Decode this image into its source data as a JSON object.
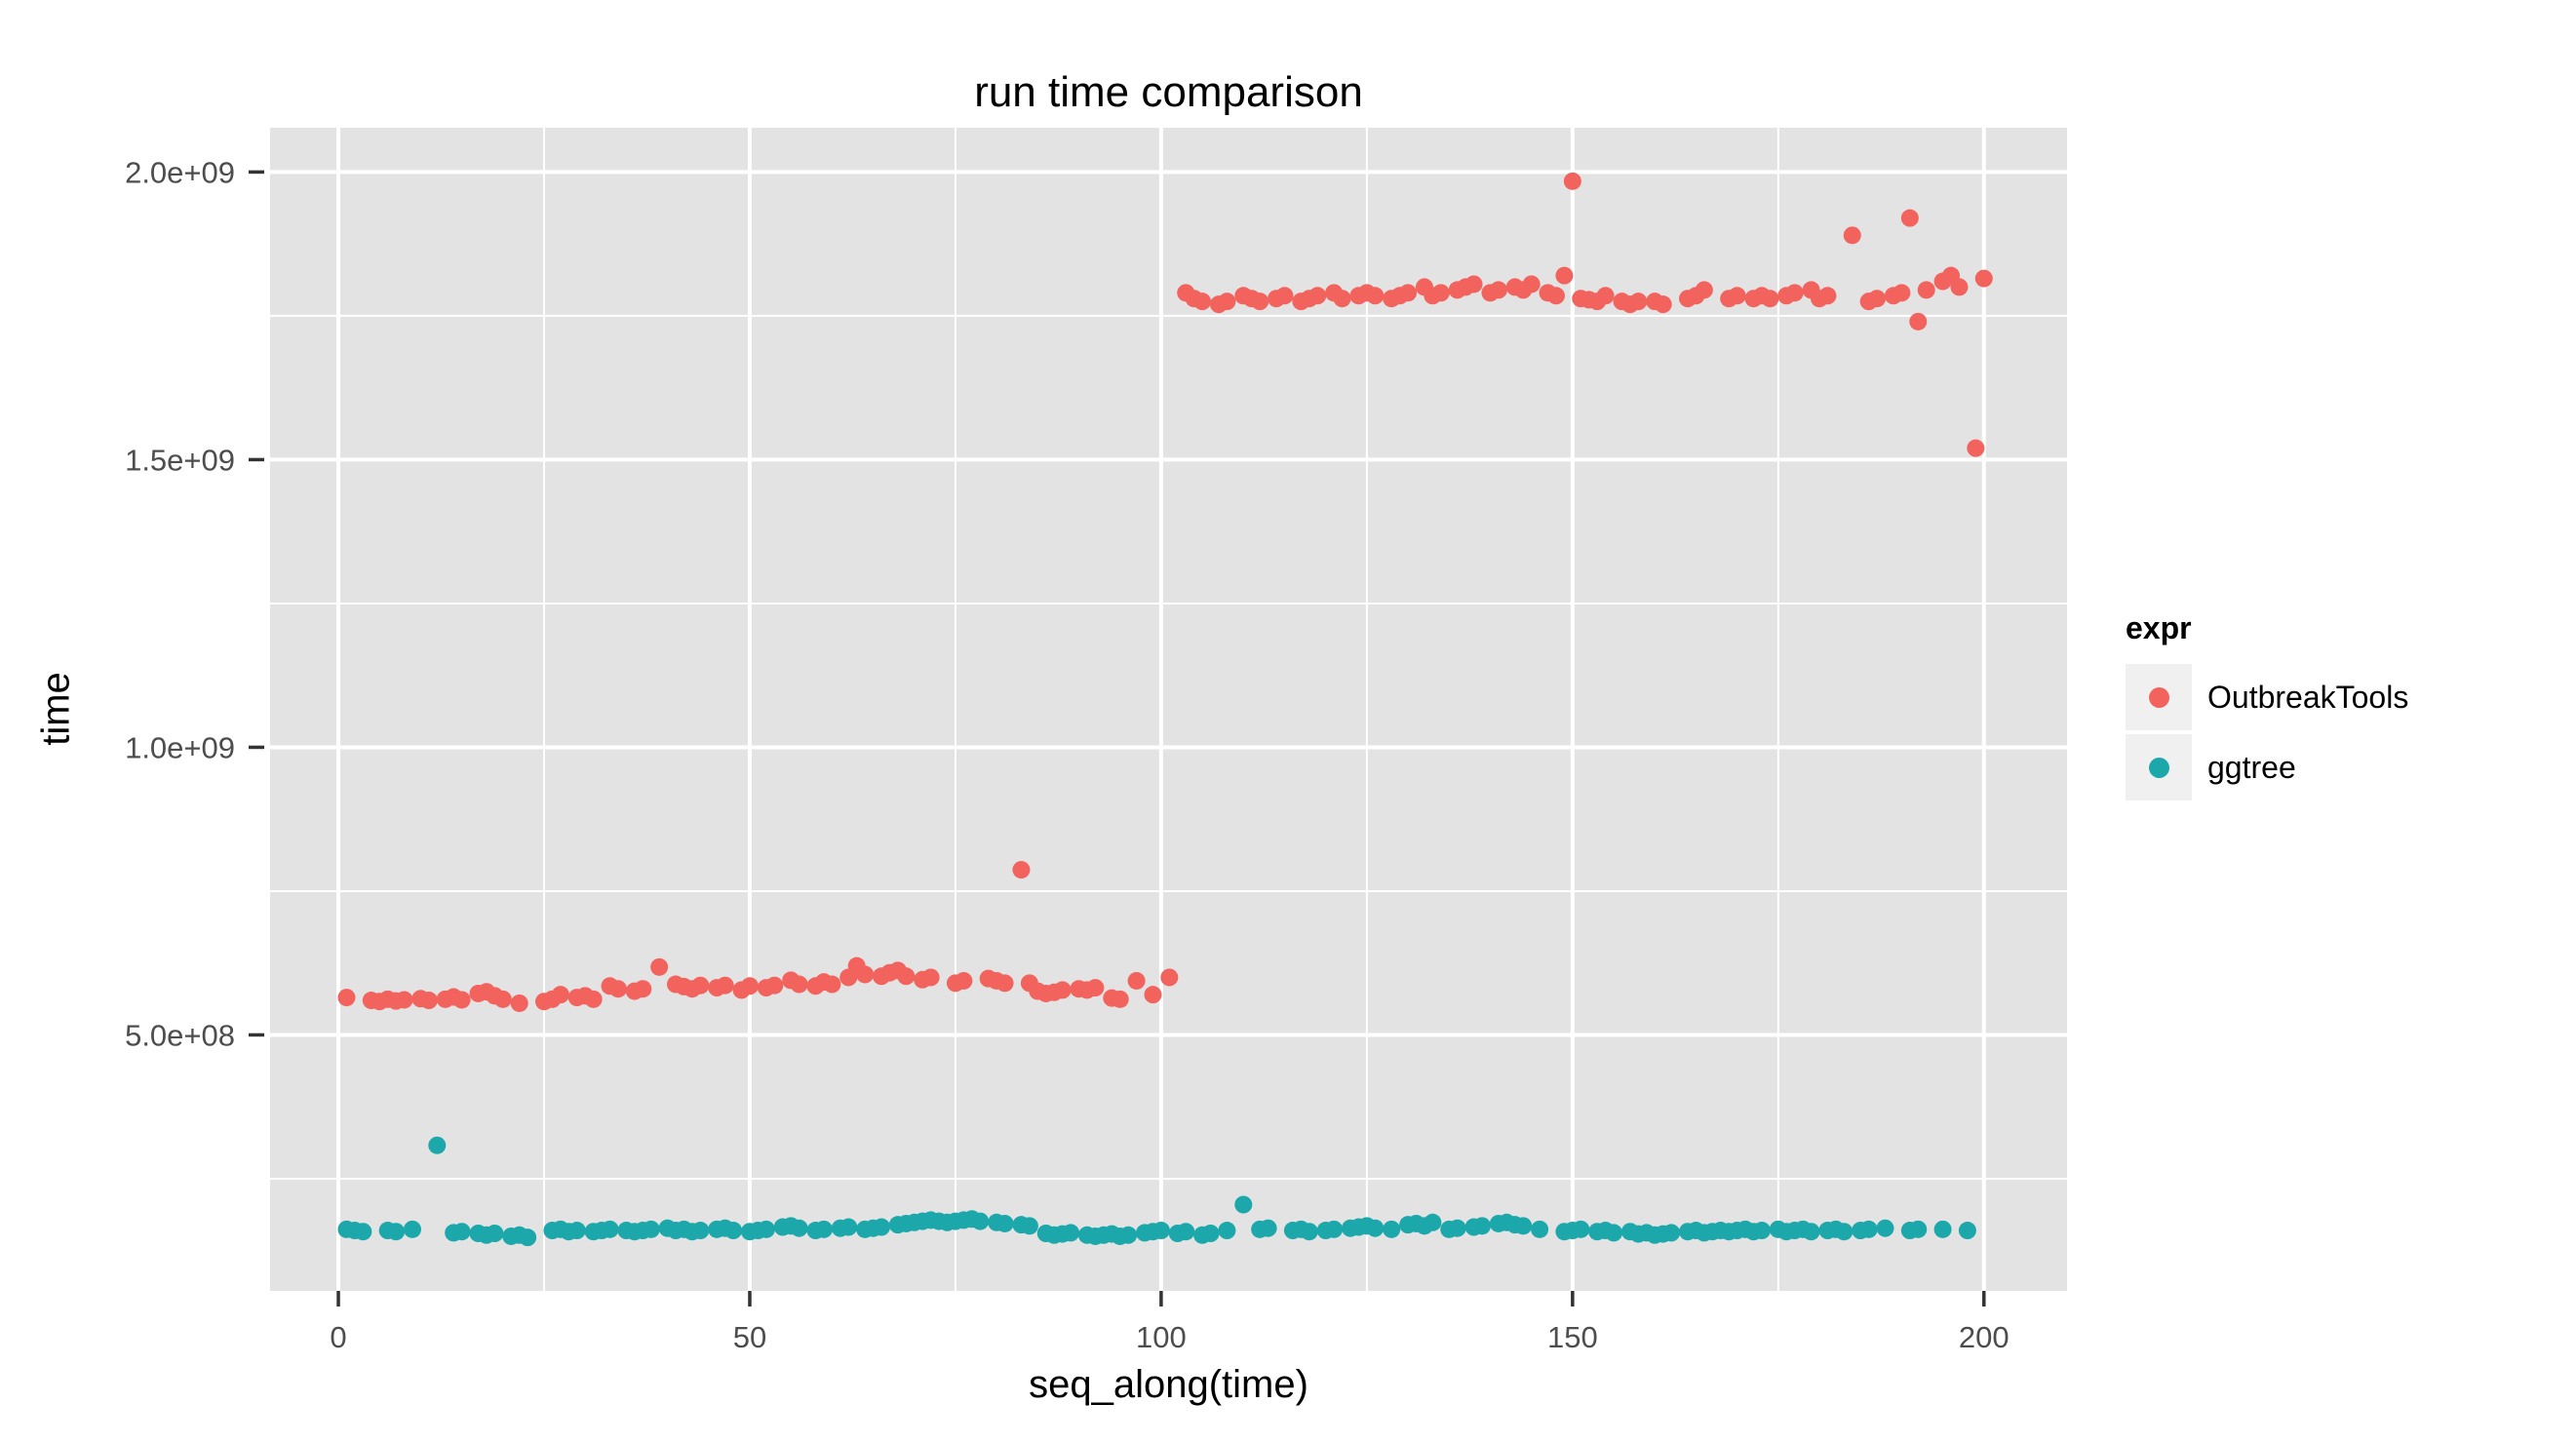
{
  "chart_data": {
    "type": "scatter",
    "title": "run time comparison",
    "xlabel": "seq_along(time)",
    "ylabel": "time",
    "legend_title": "expr",
    "legend_position": "right",
    "grid": true,
    "background": "ggplot2-grey-panel",
    "xlim": [
      -8.3,
      210.1
    ],
    "y_value_scale": 100000000,
    "ylim_e8": [
      0.55,
      20.77
    ],
    "xticks": {
      "values": [
        0,
        50,
        100,
        150,
        200
      ],
      "labels": [
        "0",
        "50",
        "100",
        "150",
        "200"
      ]
    },
    "yticks": {
      "values_e8": [
        5,
        10,
        15,
        20
      ],
      "labels": [
        "5.0e+08",
        "1.0e+09",
        "1.5e+09",
        "2.0e+09"
      ]
    },
    "x_minor": [
      25,
      75,
      125,
      175
    ],
    "y_minor_e8": [
      2.5,
      7.5,
      12.5,
      17.5
    ],
    "colors": {
      "panel_bg": "#E3E3E3",
      "grid_major": "#FFFFFF",
      "grid_minor": "#FFFFFF",
      "tick_mark": "#333333",
      "tick_label": "#4D4D4D",
      "title_text": "#000000",
      "legend_key_bg": "#F0F0F0"
    },
    "series": [
      {
        "name": "OutbreakTools",
        "color": "#F2635E",
        "points_e8": [
          [
            1,
            5.65
          ],
          [
            4,
            5.6
          ],
          [
            5,
            5.58
          ],
          [
            6,
            5.62
          ],
          [
            7,
            5.59
          ],
          [
            8,
            5.61
          ],
          [
            10,
            5.63
          ],
          [
            11,
            5.6
          ],
          [
            13,
            5.62
          ],
          [
            14,
            5.66
          ],
          [
            15,
            5.61
          ],
          [
            17,
            5.72
          ],
          [
            18,
            5.75
          ],
          [
            19,
            5.68
          ],
          [
            20,
            5.62
          ],
          [
            22,
            5.55
          ],
          [
            25,
            5.58
          ],
          [
            26,
            5.62
          ],
          [
            27,
            5.7
          ],
          [
            29,
            5.65
          ],
          [
            30,
            5.68
          ],
          [
            31,
            5.62
          ],
          [
            33,
            5.85
          ],
          [
            34,
            5.8
          ],
          [
            36,
            5.76
          ],
          [
            37,
            5.8
          ],
          [
            39,
            6.18
          ],
          [
            41,
            5.88
          ],
          [
            42,
            5.84
          ],
          [
            43,
            5.8
          ],
          [
            44,
            5.86
          ],
          [
            46,
            5.82
          ],
          [
            47,
            5.86
          ],
          [
            49,
            5.78
          ],
          [
            50,
            5.85
          ],
          [
            52,
            5.82
          ],
          [
            53,
            5.86
          ],
          [
            55,
            5.95
          ],
          [
            56,
            5.88
          ],
          [
            58,
            5.85
          ],
          [
            59,
            5.92
          ],
          [
            60,
            5.88
          ],
          [
            62,
            6.0
          ],
          [
            63,
            6.2
          ],
          [
            64,
            6.05
          ],
          [
            66,
            6.02
          ],
          [
            67,
            6.08
          ],
          [
            68,
            6.12
          ],
          [
            69,
            6.02
          ],
          [
            71,
            5.96
          ],
          [
            72,
            6.0
          ],
          [
            75,
            5.9
          ],
          [
            76,
            5.94
          ],
          [
            79,
            5.98
          ],
          [
            80,
            5.94
          ],
          [
            81,
            5.9
          ],
          [
            83,
            7.87
          ],
          [
            84,
            5.9
          ],
          [
            85,
            5.76
          ],
          [
            86,
            5.72
          ],
          [
            87,
            5.74
          ],
          [
            88,
            5.78
          ],
          [
            90,
            5.8
          ],
          [
            91,
            5.78
          ],
          [
            92,
            5.82
          ],
          [
            94,
            5.64
          ],
          [
            95,
            5.62
          ],
          [
            97,
            5.94
          ],
          [
            99,
            5.7
          ],
          [
            101,
            6.0
          ],
          [
            103,
            17.9
          ],
          [
            104,
            17.8
          ],
          [
            105,
            17.75
          ],
          [
            107,
            17.7
          ],
          [
            108,
            17.75
          ],
          [
            110,
            17.85
          ],
          [
            111,
            17.8
          ],
          [
            112,
            17.75
          ],
          [
            114,
            17.8
          ],
          [
            115,
            17.85
          ],
          [
            117,
            17.75
          ],
          [
            118,
            17.8
          ],
          [
            119,
            17.85
          ],
          [
            121,
            17.9
          ],
          [
            122,
            17.8
          ],
          [
            124,
            17.85
          ],
          [
            125,
            17.9
          ],
          [
            126,
            17.85
          ],
          [
            128,
            17.8
          ],
          [
            129,
            17.85
          ],
          [
            130,
            17.9
          ],
          [
            132,
            18.0
          ],
          [
            133,
            17.85
          ],
          [
            134,
            17.9
          ],
          [
            136,
            17.95
          ],
          [
            137,
            18.0
          ],
          [
            138,
            18.05
          ],
          [
            140,
            17.9
          ],
          [
            141,
            17.95
          ],
          [
            143,
            18.0
          ],
          [
            144,
            17.95
          ],
          [
            145,
            18.05
          ],
          [
            147,
            17.9
          ],
          [
            148,
            17.85
          ],
          [
            149,
            18.2
          ],
          [
            150,
            19.84
          ],
          [
            151,
            17.8
          ],
          [
            152,
            17.78
          ],
          [
            153,
            17.75
          ],
          [
            154,
            17.85
          ],
          [
            156,
            17.75
          ],
          [
            157,
            17.7
          ],
          [
            158,
            17.75
          ],
          [
            160,
            17.75
          ],
          [
            161,
            17.7
          ],
          [
            164,
            17.8
          ],
          [
            165,
            17.85
          ],
          [
            166,
            17.95
          ],
          [
            169,
            17.8
          ],
          [
            170,
            17.85
          ],
          [
            172,
            17.8
          ],
          [
            173,
            17.85
          ],
          [
            174,
            17.8
          ],
          [
            176,
            17.85
          ],
          [
            177,
            17.9
          ],
          [
            179,
            17.95
          ],
          [
            180,
            17.8
          ],
          [
            181,
            17.85
          ],
          [
            184,
            18.9
          ],
          [
            186,
            17.75
          ],
          [
            187,
            17.8
          ],
          [
            189,
            17.85
          ],
          [
            190,
            17.9
          ],
          [
            191,
            19.2
          ],
          [
            192,
            17.4
          ],
          [
            193,
            17.95
          ],
          [
            195,
            18.1
          ],
          [
            196,
            18.2
          ],
          [
            197,
            18.0
          ],
          [
            199,
            15.2
          ],
          [
            200,
            18.15
          ]
        ]
      },
      {
        "name": "ggtree",
        "color": "#1CA8AB",
        "points_e8": [
          [
            1,
            1.62
          ],
          [
            2,
            1.6
          ],
          [
            3,
            1.58
          ],
          [
            6,
            1.6
          ],
          [
            7,
            1.58
          ],
          [
            9,
            1.62
          ],
          [
            12,
            3.08
          ],
          [
            14,
            1.56
          ],
          [
            15,
            1.58
          ],
          [
            17,
            1.55
          ],
          [
            18,
            1.52
          ],
          [
            19,
            1.55
          ],
          [
            21,
            1.5
          ],
          [
            22,
            1.52
          ],
          [
            23,
            1.48
          ],
          [
            26,
            1.6
          ],
          [
            27,
            1.62
          ],
          [
            28,
            1.58
          ],
          [
            29,
            1.6
          ],
          [
            31,
            1.58
          ],
          [
            32,
            1.6
          ],
          [
            33,
            1.62
          ],
          [
            35,
            1.6
          ],
          [
            36,
            1.58
          ],
          [
            37,
            1.6
          ],
          [
            38,
            1.62
          ],
          [
            40,
            1.64
          ],
          [
            41,
            1.6
          ],
          [
            42,
            1.62
          ],
          [
            43,
            1.58
          ],
          [
            44,
            1.6
          ],
          [
            46,
            1.62
          ],
          [
            47,
            1.64
          ],
          [
            48,
            1.6
          ],
          [
            50,
            1.58
          ],
          [
            51,
            1.6
          ],
          [
            52,
            1.62
          ],
          [
            54,
            1.66
          ],
          [
            55,
            1.68
          ],
          [
            56,
            1.64
          ],
          [
            58,
            1.6
          ],
          [
            59,
            1.62
          ],
          [
            61,
            1.64
          ],
          [
            62,
            1.66
          ],
          [
            64,
            1.62
          ],
          [
            65,
            1.64
          ],
          [
            66,
            1.66
          ],
          [
            68,
            1.7
          ],
          [
            69,
            1.72
          ],
          [
            70,
            1.74
          ],
          [
            71,
            1.76
          ],
          [
            72,
            1.78
          ],
          [
            73,
            1.76
          ],
          [
            74,
            1.74
          ],
          [
            75,
            1.76
          ],
          [
            76,
            1.78
          ],
          [
            77,
            1.8
          ],
          [
            78,
            1.76
          ],
          [
            80,
            1.74
          ],
          [
            81,
            1.72
          ],
          [
            83,
            1.7
          ],
          [
            84,
            1.68
          ],
          [
            86,
            1.55
          ],
          [
            87,
            1.52
          ],
          [
            88,
            1.54
          ],
          [
            89,
            1.56
          ],
          [
            91,
            1.52
          ],
          [
            92,
            1.5
          ],
          [
            93,
            1.52
          ],
          [
            94,
            1.54
          ],
          [
            95,
            1.5
          ],
          [
            96,
            1.52
          ],
          [
            98,
            1.56
          ],
          [
            99,
            1.58
          ],
          [
            100,
            1.6
          ],
          [
            102,
            1.55
          ],
          [
            103,
            1.58
          ],
          [
            105,
            1.52
          ],
          [
            106,
            1.55
          ],
          [
            108,
            1.6
          ],
          [
            110,
            2.05
          ],
          [
            112,
            1.62
          ],
          [
            113,
            1.64
          ],
          [
            116,
            1.6
          ],
          [
            117,
            1.62
          ],
          [
            118,
            1.58
          ],
          [
            120,
            1.6
          ],
          [
            121,
            1.62
          ],
          [
            123,
            1.64
          ],
          [
            124,
            1.66
          ],
          [
            125,
            1.68
          ],
          [
            126,
            1.64
          ],
          [
            128,
            1.62
          ],
          [
            130,
            1.7
          ],
          [
            131,
            1.72
          ],
          [
            132,
            1.68
          ],
          [
            133,
            1.74
          ],
          [
            135,
            1.62
          ],
          [
            136,
            1.64
          ],
          [
            138,
            1.66
          ],
          [
            139,
            1.68
          ],
          [
            141,
            1.72
          ],
          [
            142,
            1.74
          ],
          [
            143,
            1.7
          ],
          [
            144,
            1.68
          ],
          [
            146,
            1.62
          ],
          [
            149,
            1.58
          ],
          [
            150,
            1.6
          ],
          [
            151,
            1.62
          ],
          [
            153,
            1.58
          ],
          [
            154,
            1.6
          ],
          [
            155,
            1.56
          ],
          [
            157,
            1.58
          ],
          [
            158,
            1.54
          ],
          [
            159,
            1.56
          ],
          [
            160,
            1.52
          ],
          [
            161,
            1.54
          ],
          [
            162,
            1.56
          ],
          [
            164,
            1.58
          ],
          [
            165,
            1.6
          ],
          [
            166,
            1.56
          ],
          [
            167,
            1.58
          ],
          [
            168,
            1.6
          ],
          [
            169,
            1.58
          ],
          [
            170,
            1.6
          ],
          [
            171,
            1.62
          ],
          [
            172,
            1.58
          ],
          [
            173,
            1.6
          ],
          [
            175,
            1.62
          ],
          [
            176,
            1.58
          ],
          [
            177,
            1.6
          ],
          [
            178,
            1.62
          ],
          [
            179,
            1.58
          ],
          [
            181,
            1.6
          ],
          [
            182,
            1.62
          ],
          [
            183,
            1.58
          ],
          [
            185,
            1.6
          ],
          [
            186,
            1.62
          ],
          [
            188,
            1.64
          ],
          [
            191,
            1.6
          ],
          [
            192,
            1.62
          ],
          [
            195,
            1.62
          ],
          [
            198,
            1.6
          ]
        ]
      }
    ]
  }
}
